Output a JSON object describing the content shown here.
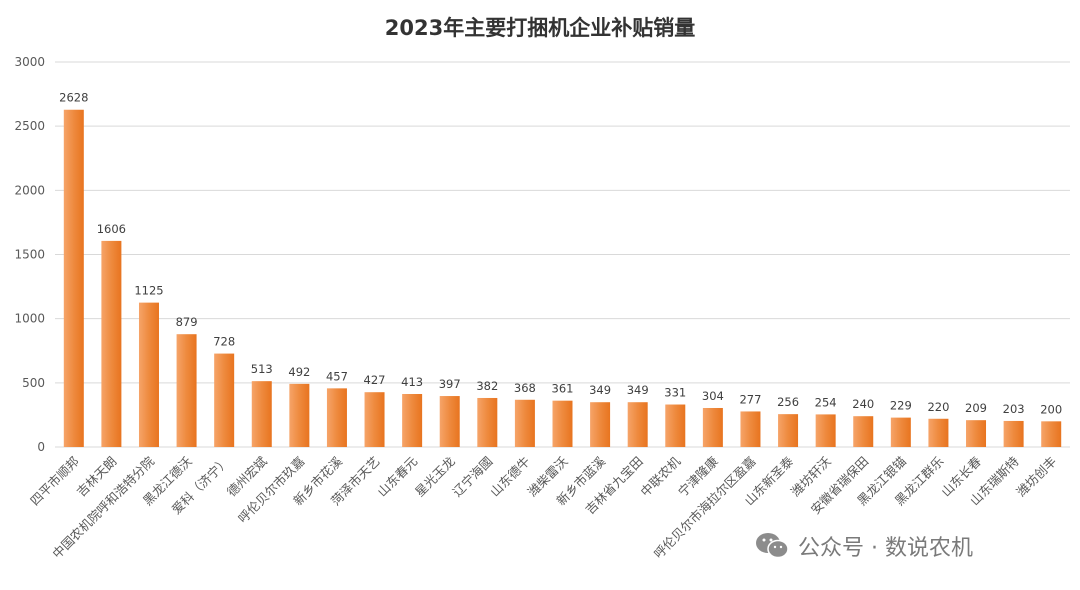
{
  "watermark": {
    "text": "公众号 · 数说农机",
    "icon": "wechat-icon"
  },
  "colors": {
    "bar_light": "#F6A469",
    "bar_dark": "#E8741F",
    "grid": "#D9D9D9",
    "axis_text": "#595959",
    "label_text": "#404040"
  },
  "chart_data": {
    "type": "bar",
    "title": "2023年主要打捆机企业补贴销量",
    "xlabel": "",
    "ylabel": "",
    "ylim": [
      0,
      3000
    ],
    "yticks": [
      0,
      500,
      1000,
      1500,
      2000,
      2500,
      3000
    ],
    "grid": true,
    "categories": [
      "四平市顺邦",
      "吉林天朗",
      "中国农机院呼和浩特分院",
      "黑龙江德沃",
      "爱科（济宁）",
      "德州宏斌",
      "呼伦贝尔市玖嘉",
      "新乡市花溪",
      "菏泽市天艺",
      "山东春元",
      "星光玉龙",
      "辽宁海國",
      "山东德牛",
      "潍柴雷沃",
      "新乡市蓝溪",
      "吉林省九宝田",
      "中联农机",
      "宁津隆康",
      "呼伦贝尔市海拉尔区盈嘉",
      "山东新圣泰",
      "潍坊轩沃",
      "安徽省瑞保田",
      "黑龙江银锚",
      "黑龙江群乐",
      "山东长春",
      "山东瑞斯特",
      "潍坊创丰"
    ],
    "values": [
      2628,
      1606,
      1125,
      879,
      728,
      513,
      492,
      457,
      427,
      413,
      397,
      382,
      368,
      361,
      349,
      349,
      331,
      304,
      277,
      256,
      254,
      240,
      229,
      220,
      209,
      203,
      200
    ]
  }
}
